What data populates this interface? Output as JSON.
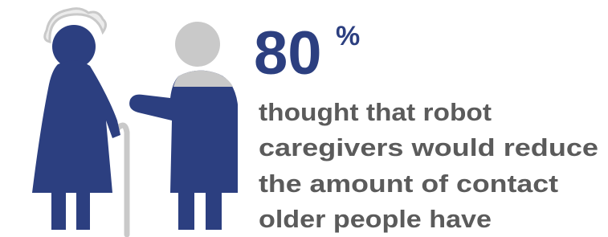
{
  "stat": {
    "value": 80,
    "unit": "%"
  },
  "description": [
    "thought that robot",
    "caregivers would reduce",
    "the amount of contact",
    "older people have"
  ]
}
